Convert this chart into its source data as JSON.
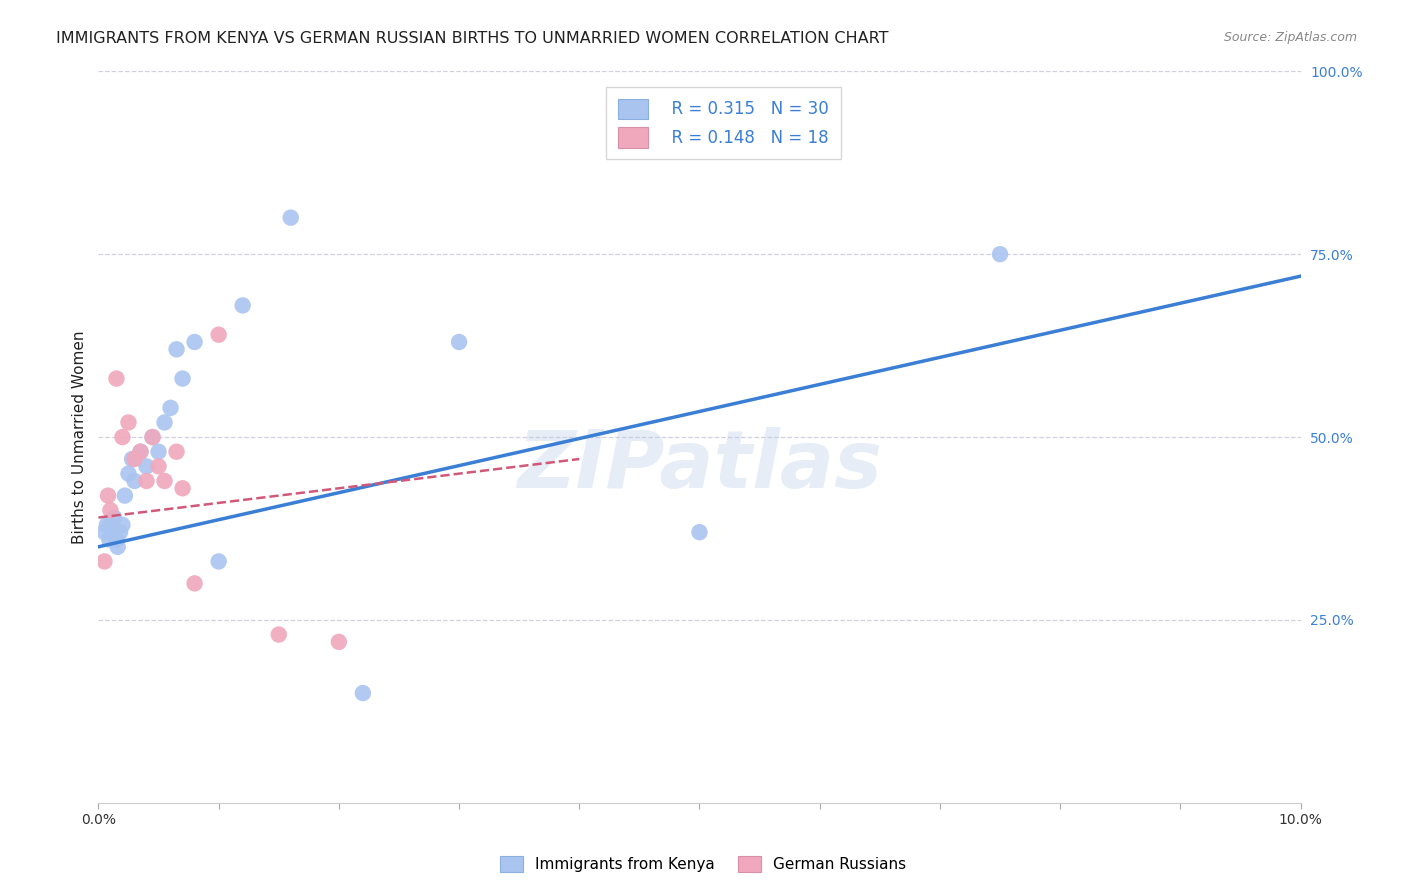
{
  "title": "IMMIGRANTS FROM KENYA VS GERMAN RUSSIAN BIRTHS TO UNMARRIED WOMEN CORRELATION CHART",
  "source": "Source: ZipAtlas.com",
  "ylabel": "Births to Unmarried Women",
  "xlabel_left": "Immigrants from Kenya",
  "xlabel_right": "German Russians",
  "x_range": [
    0.0,
    10.0
  ],
  "y_range": [
    0.0,
    100.0
  ],
  "legend_r1": "R = 0.315",
  "legend_n1": "N = 30",
  "legend_r2": "R = 0.148",
  "legend_n2": "N = 18",
  "blue_color": "#aac4f0",
  "blue_line_color": "#3a7fd5",
  "pink_color": "#f0a8bc",
  "pink_line_color": "#d05878",
  "watermark": "ZIPatlas",
  "blue_dots_x": [
    0.05,
    0.07,
    0.09,
    0.1,
    0.12,
    0.13,
    0.15,
    0.16,
    0.18,
    0.2,
    0.22,
    0.25,
    0.28,
    0.3,
    0.35,
    0.4,
    0.45,
    0.5,
    0.55,
    0.6,
    0.65,
    0.7,
    0.8,
    1.0,
    1.2,
    1.6,
    2.2,
    3.0,
    5.0,
    7.5
  ],
  "blue_dots_y": [
    37,
    38,
    36,
    38,
    37,
    39,
    36,
    35,
    37,
    38,
    42,
    45,
    47,
    44,
    48,
    46,
    50,
    48,
    52,
    54,
    62,
    58,
    63,
    33,
    68,
    80,
    15,
    63,
    37,
    75
  ],
  "pink_dots_x": [
    0.05,
    0.08,
    0.1,
    0.15,
    0.2,
    0.25,
    0.3,
    0.35,
    0.4,
    0.45,
    0.5,
    0.55,
    0.65,
    0.7,
    0.8,
    1.0,
    1.5,
    2.0
  ],
  "pink_dots_y": [
    33,
    42,
    40,
    58,
    50,
    52,
    47,
    48,
    44,
    50,
    46,
    44,
    48,
    43,
    30,
    64,
    23,
    22
  ],
  "blue_trendline_x": [
    0.0,
    10.0
  ],
  "blue_trendline_y": [
    35.0,
    72.0
  ],
  "pink_trendline_x": [
    0.0,
    4.0
  ],
  "pink_trendline_y": [
    39.0,
    47.0
  ],
  "background_color": "#ffffff",
  "grid_color": "#d0d0e0",
  "title_color": "#222222",
  "axis_label_color": "#3a7fd5",
  "right_axis_label_color": "#3a7fd5"
}
